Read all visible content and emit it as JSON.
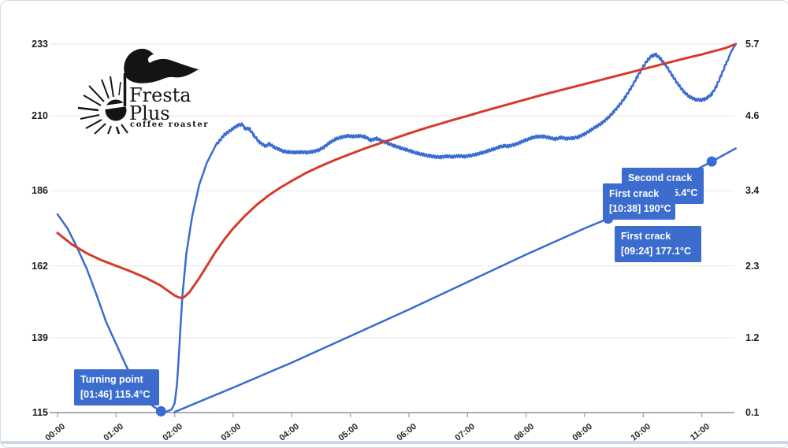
{
  "logo": {
    "name_line1": "Fresta",
    "name_line2": "Plus",
    "tagline": "coffee roaster"
  },
  "chart_data": {
    "type": "line",
    "title": "",
    "x_axis": {
      "unit": "time mm:ss",
      "tick_labels": [
        "00:00",
        "01:00",
        "02:00",
        "03:00",
        "04:00",
        "05:00",
        "06:00",
        "07:00",
        "08:00",
        "09:00",
        "10:00",
        "11:00"
      ],
      "tick_hours": [
        0,
        1,
        2,
        3,
        4,
        5,
        6,
        7,
        8,
        9,
        10,
        11
      ]
    },
    "y_axis_left": {
      "tick_labels": [
        "233",
        "210",
        "186",
        "162",
        "139",
        "115"
      ],
      "values": [
        233,
        210,
        186,
        162,
        139,
        115
      ],
      "range": [
        115,
        233
      ]
    },
    "y_axis_right": {
      "tick_labels": [
        "5.7",
        "4.6",
        "3.4",
        "2.3",
        "1.2",
        "0.1"
      ],
      "values": [
        5.7,
        4.6,
        3.4,
        2.3,
        1.2,
        0.1
      ],
      "range": [
        0.1,
        5.7
      ]
    },
    "grid": true,
    "legend": "none",
    "series": [
      {
        "name": "blue-wiggly-temp-curve",
        "color": "#3a6bd2",
        "width": 2.5,
        "jitter": true,
        "points": [
          [
            0,
            178.5
          ],
          [
            0.17,
            174
          ],
          [
            0.33,
            168
          ],
          [
            0.5,
            161
          ],
          [
            0.67,
            152.5
          ],
          [
            0.83,
            144
          ],
          [
            1.0,
            137
          ],
          [
            1.17,
            130
          ],
          [
            1.33,
            124
          ],
          [
            1.5,
            119.5
          ],
          [
            1.63,
            117
          ],
          [
            1.767,
            115.4
          ],
          [
            1.85,
            115.2
          ],
          [
            1.95,
            116
          ],
          [
            2.0,
            118
          ],
          [
            2.04,
            124
          ],
          [
            2.08,
            136
          ],
          [
            2.13,
            152
          ],
          [
            2.2,
            166
          ],
          [
            2.3,
            178
          ],
          [
            2.42,
            188
          ],
          [
            2.55,
            195
          ],
          [
            2.7,
            200.5
          ],
          [
            2.85,
            204
          ],
          [
            3.0,
            206
          ],
          [
            3.08,
            207
          ],
          [
            3.15,
            207.3
          ],
          [
            3.2,
            206
          ],
          [
            3.28,
            205.8
          ],
          [
            3.35,
            203.8
          ],
          [
            3.45,
            201.5
          ],
          [
            3.55,
            200.3
          ],
          [
            3.62,
            201
          ],
          [
            3.7,
            200
          ],
          [
            3.78,
            199.3
          ],
          [
            3.87,
            198.6
          ],
          [
            3.95,
            198.4
          ],
          [
            4.05,
            198.3
          ],
          [
            4.15,
            198.4
          ],
          [
            4.25,
            198.3
          ],
          [
            4.35,
            198.5
          ],
          [
            4.45,
            199
          ],
          [
            4.55,
            200
          ],
          [
            4.65,
            201.5
          ],
          [
            4.75,
            202.6
          ],
          [
            4.85,
            203.2
          ],
          [
            4.95,
            203.6
          ],
          [
            5.05,
            203.4
          ],
          [
            5.15,
            203.6
          ],
          [
            5.25,
            203.3
          ],
          [
            5.35,
            202.2
          ],
          [
            5.45,
            202.8
          ],
          [
            5.55,
            201.8
          ],
          [
            5.65,
            201.2
          ],
          [
            5.75,
            200.4
          ],
          [
            5.85,
            199.8
          ],
          [
            5.95,
            199.2
          ],
          [
            6.05,
            198.6
          ],
          [
            6.15,
            198
          ],
          [
            6.25,
            197.6
          ],
          [
            6.35,
            197.2
          ],
          [
            6.45,
            196.9
          ],
          [
            6.55,
            196.8
          ],
          [
            6.65,
            197.1
          ],
          [
            6.75,
            196.9
          ],
          [
            6.85,
            197.2
          ],
          [
            6.95,
            197
          ],
          [
            7.05,
            197.3
          ],
          [
            7.15,
            197.7
          ],
          [
            7.25,
            198.2
          ],
          [
            7.35,
            198.8
          ],
          [
            7.45,
            199.4
          ],
          [
            7.55,
            200.1
          ],
          [
            7.62,
            200.4
          ],
          [
            7.7,
            200.3
          ],
          [
            7.8,
            200.8
          ],
          [
            7.9,
            201.5
          ],
          [
            8.0,
            202.3
          ],
          [
            8.1,
            203
          ],
          [
            8.2,
            203.4
          ],
          [
            8.3,
            203.4
          ],
          [
            8.4,
            203
          ],
          [
            8.5,
            202.6
          ],
          [
            8.6,
            203.1
          ],
          [
            8.7,
            202.7
          ],
          [
            8.8,
            202.9
          ],
          [
            8.9,
            203.3
          ],
          [
            9.0,
            204.2
          ],
          [
            9.1,
            205.4
          ],
          [
            9.2,
            206.6
          ],
          [
            9.3,
            207.8
          ],
          [
            9.4,
            209.4
          ],
          [
            9.5,
            211.4
          ],
          [
            9.6,
            213.6
          ],
          [
            9.7,
            216.2
          ],
          [
            9.8,
            219.2
          ],
          [
            9.9,
            222.6
          ],
          [
            10.0,
            225.8
          ],
          [
            10.08,
            228
          ],
          [
            10.15,
            229.3
          ],
          [
            10.22,
            229.6
          ],
          [
            10.3,
            228.2
          ],
          [
            10.4,
            225.8
          ],
          [
            10.5,
            222.8
          ],
          [
            10.6,
            220
          ],
          [
            10.7,
            217.6
          ],
          [
            10.8,
            216
          ],
          [
            10.9,
            215.2
          ],
          [
            11.0,
            215.1
          ],
          [
            11.05,
            215.4
          ],
          [
            11.1,
            215.9
          ],
          [
            11.17,
            217
          ],
          [
            11.25,
            219.5
          ],
          [
            11.33,
            223
          ],
          [
            11.42,
            227
          ],
          [
            11.5,
            230.5
          ],
          [
            11.58,
            233
          ]
        ]
      },
      {
        "name": "red-smooth-temp-curve",
        "color": "#d63a2a",
        "width": 3,
        "jitter": false,
        "points": [
          [
            0,
            172.5
          ],
          [
            0.25,
            168.8
          ],
          [
            0.5,
            166
          ],
          [
            0.75,
            163.8
          ],
          [
            1.0,
            162
          ],
          [
            1.25,
            160.2
          ],
          [
            1.5,
            158.2
          ],
          [
            1.75,
            155.8
          ],
          [
            1.9,
            153.8
          ],
          [
            2.0,
            152.5
          ],
          [
            2.08,
            151.8
          ],
          [
            2.15,
            151.8
          ],
          [
            2.25,
            153.5
          ],
          [
            2.4,
            157.5
          ],
          [
            2.55,
            162
          ],
          [
            2.7,
            166.5
          ],
          [
            2.85,
            170.5
          ],
          [
            3.0,
            174
          ],
          [
            3.2,
            178
          ],
          [
            3.4,
            181.5
          ],
          [
            3.6,
            184.5
          ],
          [
            3.8,
            187
          ],
          [
            4.0,
            189.2
          ],
          [
            4.25,
            191.8
          ],
          [
            4.5,
            194
          ],
          [
            4.75,
            196
          ],
          [
            5.0,
            197.8
          ],
          [
            5.25,
            199.6
          ],
          [
            5.5,
            201.2
          ],
          [
            5.75,
            202.8
          ],
          [
            6.0,
            204.4
          ],
          [
            6.25,
            205.9
          ],
          [
            6.5,
            207.3
          ],
          [
            6.75,
            208.7
          ],
          [
            7.0,
            210
          ],
          [
            7.25,
            211.4
          ],
          [
            7.5,
            212.7
          ],
          [
            7.75,
            214
          ],
          [
            8.0,
            215.3
          ],
          [
            8.25,
            216.6
          ],
          [
            8.5,
            217.8
          ],
          [
            8.75,
            219
          ],
          [
            9.0,
            220.2
          ],
          [
            9.25,
            221.4
          ],
          [
            9.5,
            222.6
          ],
          [
            9.75,
            223.8
          ],
          [
            10.0,
            225
          ],
          [
            10.25,
            226.2
          ],
          [
            10.5,
            227.4
          ],
          [
            10.75,
            228.6
          ],
          [
            11.0,
            229.7
          ],
          [
            11.2,
            230.7
          ],
          [
            11.4,
            231.7
          ],
          [
            11.58,
            233
          ]
        ]
      },
      {
        "name": "blue-straight-probe-line",
        "color": "#3a6bd2",
        "width": 2.5,
        "jitter": false,
        "points": [
          [
            2.0,
            115.2
          ],
          [
            3.0,
            123
          ],
          [
            4.0,
            131
          ],
          [
            5.0,
            139.5
          ],
          [
            6.0,
            148
          ],
          [
            7.0,
            156.8
          ],
          [
            8.0,
            165.6
          ],
          [
            9.0,
            174
          ],
          [
            9.4,
            177.1
          ],
          [
            10.0,
            183
          ],
          [
            10.63,
            190
          ],
          [
            11.17,
            195.4
          ],
          [
            11.58,
            199.6
          ]
        ]
      }
    ],
    "markers": [
      {
        "name": "turning-point-dot",
        "t": 1.767,
        "temp": 115.4
      },
      {
        "name": "first-crack-dot",
        "t": 9.4,
        "temp": 177.1
      },
      {
        "name": "second-crack-dot",
        "t": 11.17,
        "temp": 195.4
      }
    ]
  },
  "tooltips": {
    "turning_point": {
      "title": "Turning point",
      "value": "[01:46] 115.4°C"
    },
    "first_crack_0924": {
      "title": "First crack",
      "value": "[09:24] 177.1°C"
    },
    "first_crack_1038": {
      "title": "First crack",
      "value": "[10:38] 190°C"
    },
    "second_crack": {
      "title": "Second crack",
      "value": "[11:10] 195.4°C",
      "visible_fragment": "5.4°C"
    }
  },
  "colors": {
    "line_blue": "#3a6bd2",
    "line_red": "#d63a2a",
    "tooltip_bg": "#3b6cce",
    "gridline": "#e7e7e7",
    "axis_line": "#a9aeb4",
    "axis_text": "#1f1f1f",
    "bottom_strip": "#cdd9e8"
  }
}
